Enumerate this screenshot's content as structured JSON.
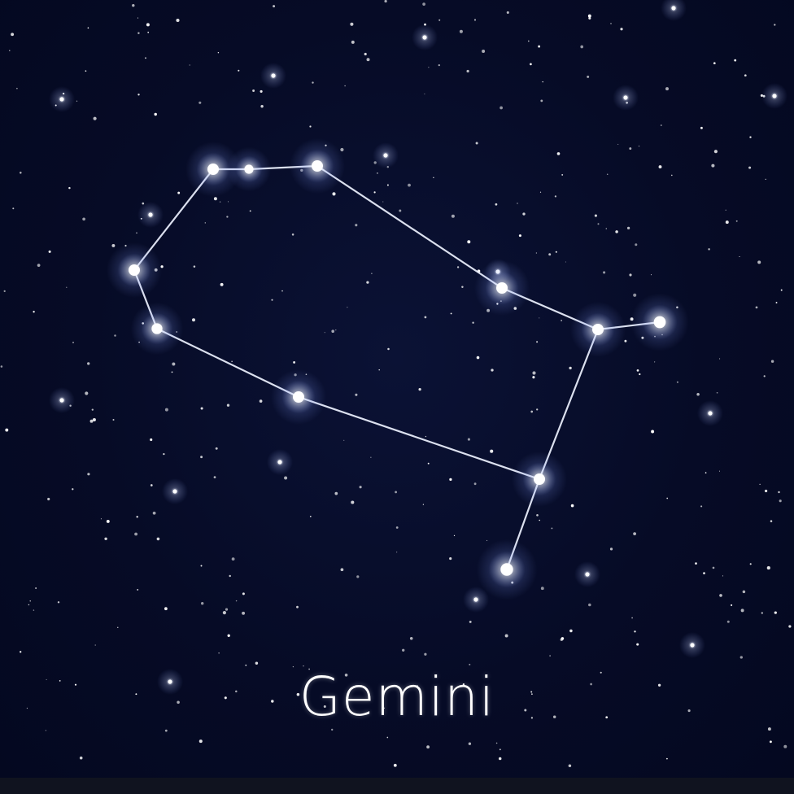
{
  "constellation": {
    "name": "Gemini"
  },
  "colors": {
    "sky_deep": "#040820",
    "sky_mid": "#0b1235",
    "star": "#ffffff",
    "glow": "#9fb8ff",
    "line": "#e8eeff",
    "strip": "#10131f"
  }
}
